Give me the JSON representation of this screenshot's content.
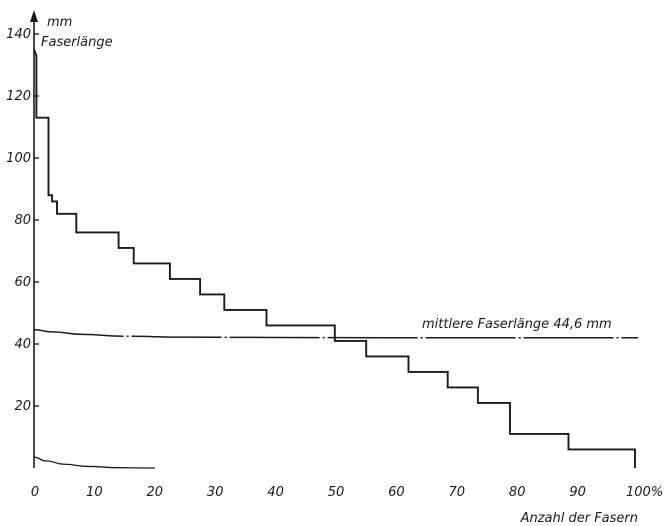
{
  "chart_data": {
    "type": "line",
    "title": "",
    "ylabel_unit": "mm",
    "ylabel": "Faserlänge",
    "xlabel": "Anzahl der Fasern",
    "xlim": [
      0,
      100
    ],
    "ylim": [
      0,
      140
    ],
    "x_ticks": [
      0,
      10,
      20,
      30,
      40,
      50,
      60,
      70,
      80,
      90,
      100
    ],
    "x_tick_labels": [
      "0",
      "10",
      "20",
      "30",
      "40",
      "50",
      "60",
      "70",
      "80",
      "90",
      "100%"
    ],
    "y_ticks": [
      20,
      40,
      60,
      80,
      100,
      120,
      140
    ],
    "y_tick_labels": [
      "20",
      "40",
      "60",
      "80",
      "100",
      "120",
      "140"
    ],
    "grid": false,
    "series": [
      {
        "style": "step",
        "x": [
          0,
          0.4,
          0.4,
          2.4,
          2.4,
          3.0,
          3.0,
          3.8,
          3.8,
          7.0,
          7.0,
          14.0,
          14.0,
          16.5,
          16.5,
          22.5,
          22.5,
          27.5,
          27.5,
          31.5,
          31.5,
          38.5,
          38.5,
          49.8,
          49.8,
          55.0,
          55.0,
          62.0,
          62.0,
          68.5,
          68.5,
          73.5,
          73.5,
          78.8,
          78.8,
          88.5,
          88.5,
          99.5,
          99.5
        ],
        "y": [
          135,
          133,
          113,
          113,
          88,
          88,
          86,
          86,
          82,
          82,
          76,
          76,
          71,
          71,
          66,
          66,
          61,
          61,
          56,
          56,
          51,
          51,
          46,
          46,
          41,
          41,
          36,
          36,
          31,
          31,
          26,
          26,
          21,
          21,
          11,
          11,
          6,
          6,
          0
        ]
      },
      {
        "name": "mittlere Faserlänge 44,6 mm",
        "style": "curve",
        "x": [
          0,
          3,
          8,
          15,
          25,
          40,
          60,
          80,
          100
        ],
        "y": [
          44.6,
          43.9,
          43.1,
          42.5,
          42.2,
          42.1,
          42.0,
          42.0,
          42.0
        ]
      },
      {
        "style": "curve",
        "x": [
          0,
          2,
          5,
          9,
          14,
          20
        ],
        "y": [
          3.5,
          2.3,
          1.2,
          0.5,
          0.1,
          0
        ]
      }
    ],
    "annotations": [
      {
        "text": "mittlere Faserlänge 44,6 mm",
        "x": 100,
        "y": 42
      }
    ]
  }
}
